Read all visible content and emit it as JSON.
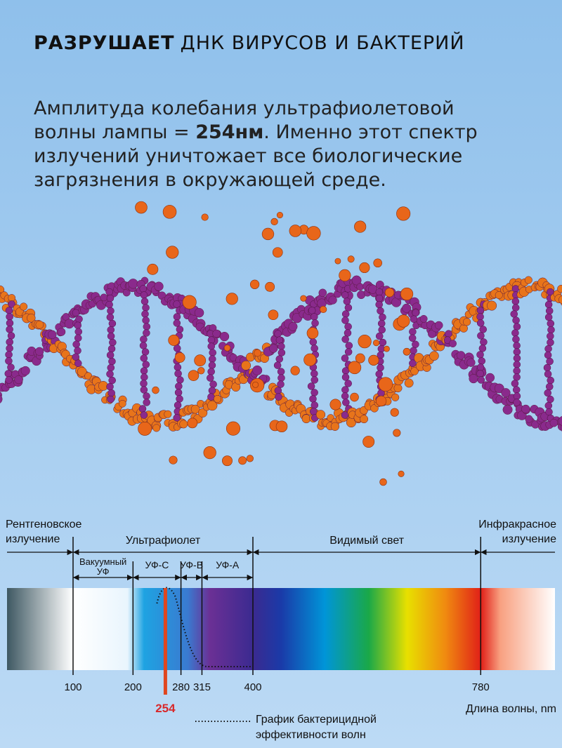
{
  "header": {
    "title_bold": "РАЗРУШАЕТ",
    "title_rest": "ДНК ВИРУСОВ И БАКТЕРИЙ"
  },
  "description": {
    "line1": "Амплитуда колебания ультрафиолетовой",
    "line2_start": "волны лампы = ",
    "line2_bold": "254нм",
    "line2_end": ". Именно этот спектр",
    "line3": "излучений уничтожает все биологические",
    "line4": "загрязнения в окружающей среде."
  },
  "spectrum": {
    "regions": {
      "xray": [
        "Рентгеновское",
        "излучение"
      ],
      "uv": "Ультрафиолет",
      "visible": "Видимый свет",
      "infrared": [
        "Инфракрасное",
        "излучение"
      ]
    },
    "uv_bands": {
      "vacuum": [
        "Вакуумный",
        "УФ"
      ],
      "uvc": "УФ-С",
      "uvb": "УФ-В",
      "uva": "УФ-А"
    },
    "ticks": [
      100,
      200,
      280,
      315,
      400,
      780
    ],
    "highlight": 254,
    "axis_label": "Длина волны, nm",
    "curve_legend": [
      "График бактерицидной",
      "эффективности волн"
    ]
  }
}
